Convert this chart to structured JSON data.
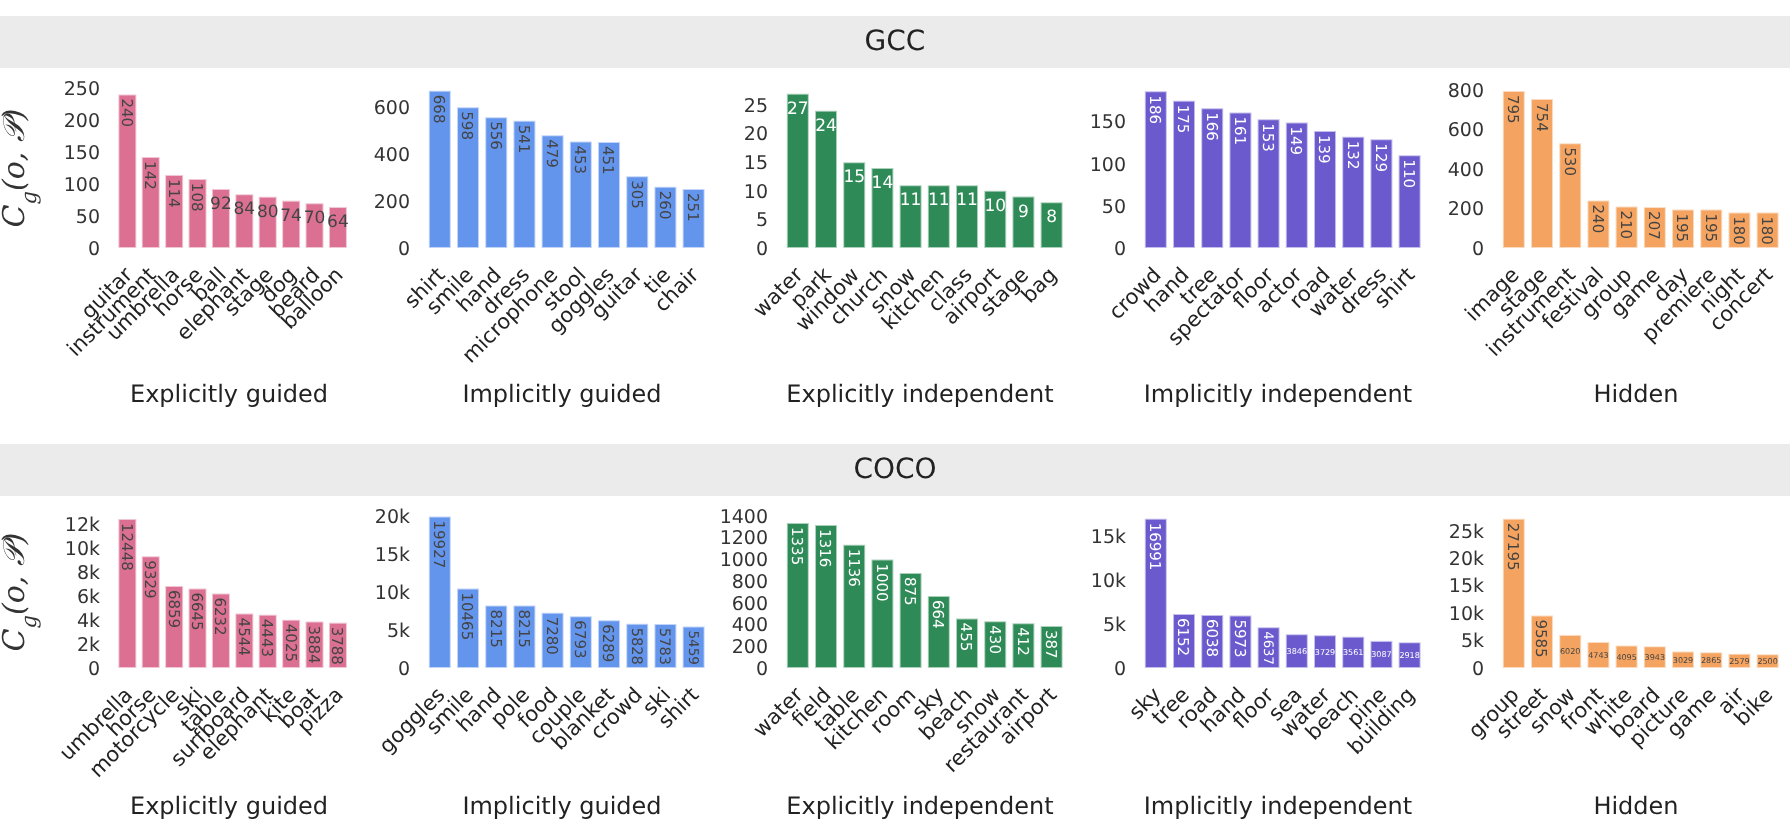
{
  "chart_data": [
    {
      "type": "bar",
      "ylabel": "C$_{g}$(o, 𝒫)",
      "xlabel": "Explicitly guided",
      "categories": [
        "guitar",
        "instrument",
        "umbrella",
        "horse",
        "ball",
        "elephant",
        "stage",
        "dog",
        "beard",
        "balloon"
      ],
      "values": [
        240,
        142,
        114,
        108,
        92,
        84,
        80,
        74,
        70,
        64
      ],
      "color": "#db7093",
      "ylim": [
        0,
        250
      ],
      "yticks": [
        0,
        50,
        100,
        150,
        200,
        250
      ],
      "data_labels": true
    },
    {
      "type": "bar",
      "xlabel": "Implicitly guided",
      "categories": [
        "shirt",
        "smile",
        "hand",
        "dress",
        "microphone",
        "stool",
        "goggles",
        "guitar",
        "tie",
        "chair"
      ],
      "values": [
        668,
        598,
        556,
        541,
        479,
        453,
        451,
        305,
        260,
        251
      ],
      "color": "#6495ed",
      "ylim": [
        0,
        680
      ],
      "yticks": [
        0,
        200,
        400,
        600
      ],
      "data_labels": true
    },
    {
      "type": "bar",
      "title": "GCC",
      "xlabel": "Explicitly independent",
      "categories": [
        "water",
        "park",
        "window",
        "church",
        "snow",
        "kitchen",
        "class",
        "airport",
        "stage",
        "bag"
      ],
      "values": [
        27,
        24,
        15,
        14,
        11,
        11,
        11,
        10,
        9,
        8
      ],
      "color": "#2e8b57",
      "ylim": [
        0,
        28
      ],
      "yticks": [
        0,
        5,
        10,
        15,
        20,
        25
      ],
      "data_labels": true
    },
    {
      "type": "bar",
      "xlabel": "Implicitly independent",
      "categories": [
        "crowd",
        "hand",
        "tree",
        "spectator",
        "floor",
        "actor",
        "road",
        "water",
        "dress",
        "shirt"
      ],
      "values": [
        186,
        175,
        166,
        161,
        153,
        149,
        139,
        132,
        129,
        110
      ],
      "color": "#6a5acd",
      "ylim": [
        0,
        190
      ],
      "yticks": [
        0,
        50,
        100,
        150
      ],
      "data_labels": true
    },
    {
      "type": "bar",
      "xlabel": "Hidden",
      "categories": [
        "image",
        "stage",
        "instrument",
        "festival",
        "group",
        "game",
        "day",
        "premiere",
        "night",
        "concert"
      ],
      "values": [
        795,
        754,
        530,
        240,
        210,
        207,
        195,
        195,
        180,
        180
      ],
      "color": "#f4a460",
      "ylim": [
        0,
        810
      ],
      "yticks": [
        0,
        200,
        400,
        600,
        800
      ],
      "data_labels": true
    },
    {
      "type": "bar",
      "ylabel": "C$_{g}$(o, 𝒫)",
      "xlabel": "Explicitly guided",
      "categories": [
        "umbrella",
        "horse",
        "motorcycle",
        "ski",
        "table",
        "surfboard",
        "elephant",
        "kite",
        "boat",
        "pizza"
      ],
      "values": [
        12448,
        9329,
        6859,
        6645,
        6232,
        4544,
        4443,
        4025,
        3884,
        3788
      ],
      "color": "#db7093",
      "ylim": [
        0,
        12700
      ],
      "yticks": [
        0,
        {
          "value": 2000,
          "label": "2k"
        },
        {
          "value": 4000,
          "label": "4k"
        },
        {
          "value": 6000,
          "label": "6k"
        },
        {
          "value": 8000,
          "label": "8k"
        },
        {
          "value": 10000,
          "label": "10k"
        },
        {
          "value": 12000,
          "label": "12k"
        }
      ],
      "data_labels": true
    },
    {
      "type": "bar",
      "xlabel": "Implicitly guided",
      "categories": [
        "goggles",
        "smile",
        "hand",
        "pole",
        "food",
        "couple",
        "blanket",
        "crowd",
        "ski",
        "shirt"
      ],
      "values": [
        19927,
        10465,
        8215,
        8215,
        7280,
        6793,
        6289,
        5828,
        5783,
        5459
      ],
      "color": "#6495ed",
      "ylim": [
        0,
        20000
      ],
      "yticks": [
        0,
        {
          "value": 5000,
          "label": "5k"
        },
        {
          "value": 10000,
          "label": "10k"
        },
        {
          "value": 15000,
          "label": "15k"
        },
        {
          "value": 20000,
          "label": "20k"
        }
      ],
      "data_labels": true
    },
    {
      "type": "bar",
      "title": "COCO",
      "xlabel": "Explicitly independent",
      "categories": [
        "water",
        "field",
        "table",
        "kitchen",
        "room",
        "sky",
        "beach",
        "snow",
        "restaurant",
        "airport"
      ],
      "values": [
        1335,
        1316,
        1136,
        1000,
        875,
        664,
        455,
        430,
        412,
        387
      ],
      "color": "#2e8b57",
      "ylim": [
        0,
        1400
      ],
      "yticks": [
        0,
        200,
        400,
        600,
        800,
        1000,
        1200,
        1400
      ],
      "data_labels": true
    },
    {
      "type": "bar",
      "xlabel": "Implicitly independent",
      "categories": [
        "sky",
        "tree",
        "road",
        "hand",
        "floor",
        "sea",
        "water",
        "beach",
        "pine",
        "building"
      ],
      "values": [
        16991,
        6152,
        6038,
        5973,
        4637,
        3846,
        3729,
        3561,
        3087,
        2918
      ],
      "color": "#6a5acd",
      "ylim": [
        0,
        17300
      ],
      "yticks": [
        0,
        {
          "value": 5000,
          "label": "5k"
        },
        {
          "value": 10000,
          "label": "10k"
        },
        {
          "value": 15000,
          "label": "15k"
        }
      ],
      "data_labels": true
    },
    {
      "type": "bar",
      "xlabel": "Hidden",
      "categories": [
        "group",
        "street",
        "snow",
        "front",
        "white",
        "board",
        "picture",
        "game",
        "air",
        "bike"
      ],
      "values": [
        27195,
        9585,
        6020,
        4743,
        4095,
        3943,
        3029,
        2865,
        2579,
        2500
      ],
      "color": "#f4a460",
      "ylim": [
        0,
        27700
      ],
      "yticks": [
        0,
        {
          "value": 5000,
          "label": "5k"
        },
        {
          "value": 10000,
          "label": "10k"
        },
        {
          "value": 15000,
          "label": "15k"
        },
        {
          "value": 20000,
          "label": "20k"
        },
        {
          "value": 25000,
          "label": "25k"
        }
      ],
      "data_labels": true
    }
  ]
}
